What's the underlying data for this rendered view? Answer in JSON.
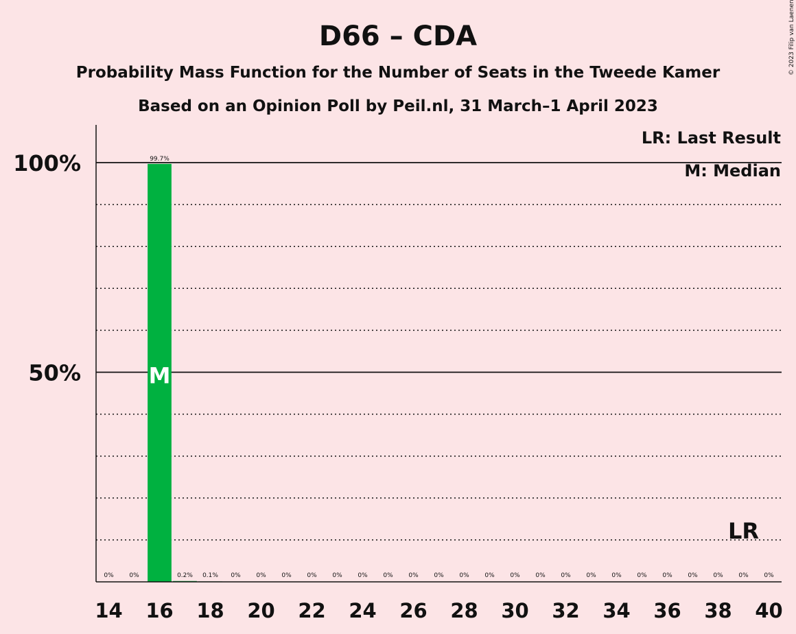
{
  "chart_data": {
    "type": "bar",
    "title": "D66 – CDA",
    "subtitle_line1": "Probability Mass Function for the Number of Seats in the Tweede Kamer",
    "subtitle_line2": "Based on an Opinion Poll by Peil.nl, 31 March–1 April 2023",
    "copyright": "© 2023 Filip van Laenen",
    "x": [
      14,
      15,
      16,
      17,
      18,
      19,
      20,
      21,
      22,
      23,
      24,
      25,
      26,
      27,
      28,
      29,
      30,
      31,
      32,
      33,
      34,
      35,
      36,
      37,
      38,
      39,
      40
    ],
    "values": [
      0,
      0,
      99.7,
      0.2,
      0.1,
      0,
      0,
      0,
      0,
      0,
      0,
      0,
      0,
      0,
      0,
      0,
      0,
      0,
      0,
      0,
      0,
      0,
      0,
      0,
      0,
      0,
      0
    ],
    "data_labels": [
      "0%",
      "0%",
      "99.7%",
      "0.2%",
      "0.1%",
      "0%",
      "0%",
      "0%",
      "0%",
      "0%",
      "0%",
      "0%",
      "0%",
      "0%",
      "0%",
      "0%",
      "0%",
      "0%",
      "0%",
      "0%",
      "0%",
      "0%",
      "0%",
      "0%",
      "0%",
      "0%",
      "0%"
    ],
    "x_tick_labels": [
      "14",
      "16",
      "18",
      "20",
      "22",
      "24",
      "26",
      "28",
      "30",
      "32",
      "34",
      "36",
      "38",
      "40"
    ],
    "y_tick_labels": [
      {
        "value": 50,
        "label": "50%"
      },
      {
        "value": 100,
        "label": "100%"
      }
    ],
    "ylim": [
      0,
      109
    ],
    "xlim": [
      13.5,
      40.5
    ],
    "median": 16,
    "median_marker": "M",
    "last_result": 39,
    "last_result_marker": "LR",
    "legend": {
      "position": "top-right",
      "entries": [
        "LR: Last Result",
        "M: Median"
      ]
    },
    "grid": {
      "major": [
        50,
        100
      ],
      "minor_dotted": [
        10,
        20,
        30,
        40,
        60,
        70,
        80,
        90
      ]
    },
    "bar_color": "#00b140",
    "background_color": "#fce4e6"
  }
}
